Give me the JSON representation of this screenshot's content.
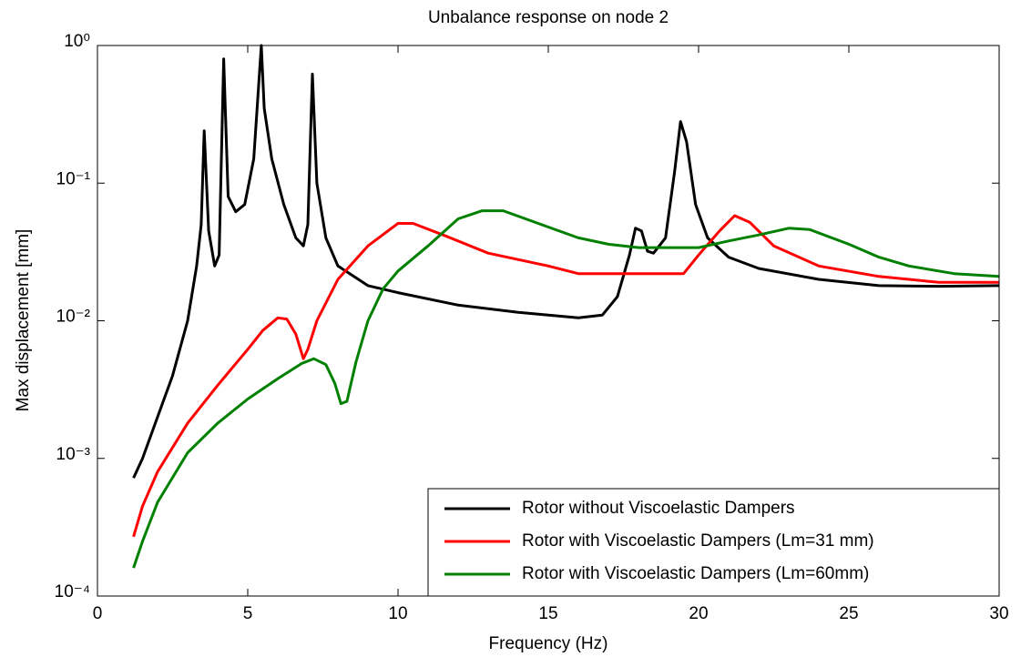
{
  "chart_data": {
    "type": "line",
    "title": "Unbalance response on node 2",
    "xlabel": "Frequency (Hz)",
    "ylabel": "Max displacement [mm]",
    "xlim": [
      0,
      30
    ],
    "xticks": [
      0,
      5,
      10,
      15,
      20,
      25,
      30
    ],
    "ylim": [
      0.0001,
      1
    ],
    "yscale": "log",
    "yticks": [
      {
        "value": 0.0001,
        "label": "10⁻⁴"
      },
      {
        "value": 0.001,
        "label": "10⁻³"
      },
      {
        "value": 0.01,
        "label": "10⁻²"
      },
      {
        "value": 0.1,
        "label": "10⁻¹"
      },
      {
        "value": 1,
        "label": "10⁰"
      }
    ],
    "legend": "lower right",
    "series": [
      {
        "name": "Rotor without Viscoelastic Dampers",
        "color": "#000000",
        "x": [
          1.2,
          1.5,
          2,
          2.5,
          3,
          3.3,
          3.45,
          3.55,
          3.7,
          3.9,
          4.05,
          4.2,
          4.35,
          4.6,
          4.9,
          5.2,
          5.45,
          5.55,
          5.8,
          6.2,
          6.6,
          6.85,
          7.0,
          7.15,
          7.3,
          7.6,
          8,
          9,
          10,
          12,
          14,
          16,
          16.8,
          17.3,
          17.7,
          17.9,
          18.1,
          18.3,
          18.5,
          18.9,
          19.2,
          19.4,
          19.6,
          19.9,
          20.3,
          21,
          22,
          24,
          26,
          28,
          30
        ],
        "values": [
          0.00072,
          0.001,
          0.002,
          0.004,
          0.01,
          0.025,
          0.05,
          0.24,
          0.045,
          0.025,
          0.03,
          0.8,
          0.08,
          0.062,
          0.07,
          0.15,
          1.0,
          0.35,
          0.15,
          0.07,
          0.04,
          0.035,
          0.05,
          0.62,
          0.1,
          0.04,
          0.025,
          0.018,
          0.016,
          0.013,
          0.0115,
          0.0105,
          0.011,
          0.015,
          0.03,
          0.047,
          0.045,
          0.032,
          0.031,
          0.04,
          0.12,
          0.28,
          0.2,
          0.07,
          0.04,
          0.029,
          0.024,
          0.02,
          0.018,
          0.0178,
          0.018
        ]
      },
      {
        "name": "Rotor with Viscoelastic Dampers (Lm=31 mm)",
        "color": "#ff0000",
        "x": [
          1.2,
          1.5,
          2,
          3,
          4,
          5,
          5.5,
          6,
          6.3,
          6.6,
          6.85,
          7.0,
          7.3,
          8,
          9,
          10,
          10.5,
          11.5,
          13,
          15,
          16,
          18,
          19.5,
          20,
          20.7,
          21.2,
          21.7,
          22.5,
          24,
          26,
          28,
          30
        ],
        "values": [
          0.00027,
          0.00045,
          0.0008,
          0.0018,
          0.0034,
          0.0062,
          0.0085,
          0.0105,
          0.0103,
          0.008,
          0.0053,
          0.0062,
          0.01,
          0.02,
          0.035,
          0.051,
          0.051,
          0.042,
          0.031,
          0.025,
          0.022,
          0.022,
          0.022,
          0.03,
          0.045,
          0.058,
          0.052,
          0.035,
          0.025,
          0.021,
          0.019,
          0.019
        ]
      },
      {
        "name": "Rotor with Viscoelastic Dampers (Lm=60mm)",
        "color": "#008000",
        "x": [
          1.2,
          1.5,
          2,
          3,
          4,
          5,
          6,
          6.8,
          7.2,
          7.6,
          7.9,
          8.1,
          8.3,
          8.6,
          9,
          9.5,
          10,
          11,
          12,
          12.8,
          13.5,
          15,
          16,
          17,
          18,
          20,
          21,
          22,
          23,
          23.7,
          25,
          26,
          27,
          28.5,
          30
        ],
        "values": [
          0.00016,
          0.00025,
          0.00048,
          0.0011,
          0.0018,
          0.0027,
          0.0038,
          0.0049,
          0.0053,
          0.0048,
          0.0035,
          0.0025,
          0.0026,
          0.005,
          0.01,
          0.017,
          0.023,
          0.035,
          0.055,
          0.063,
          0.063,
          0.048,
          0.04,
          0.036,
          0.034,
          0.034,
          0.038,
          0.042,
          0.047,
          0.046,
          0.036,
          0.029,
          0.025,
          0.022,
          0.021
        ]
      }
    ]
  }
}
